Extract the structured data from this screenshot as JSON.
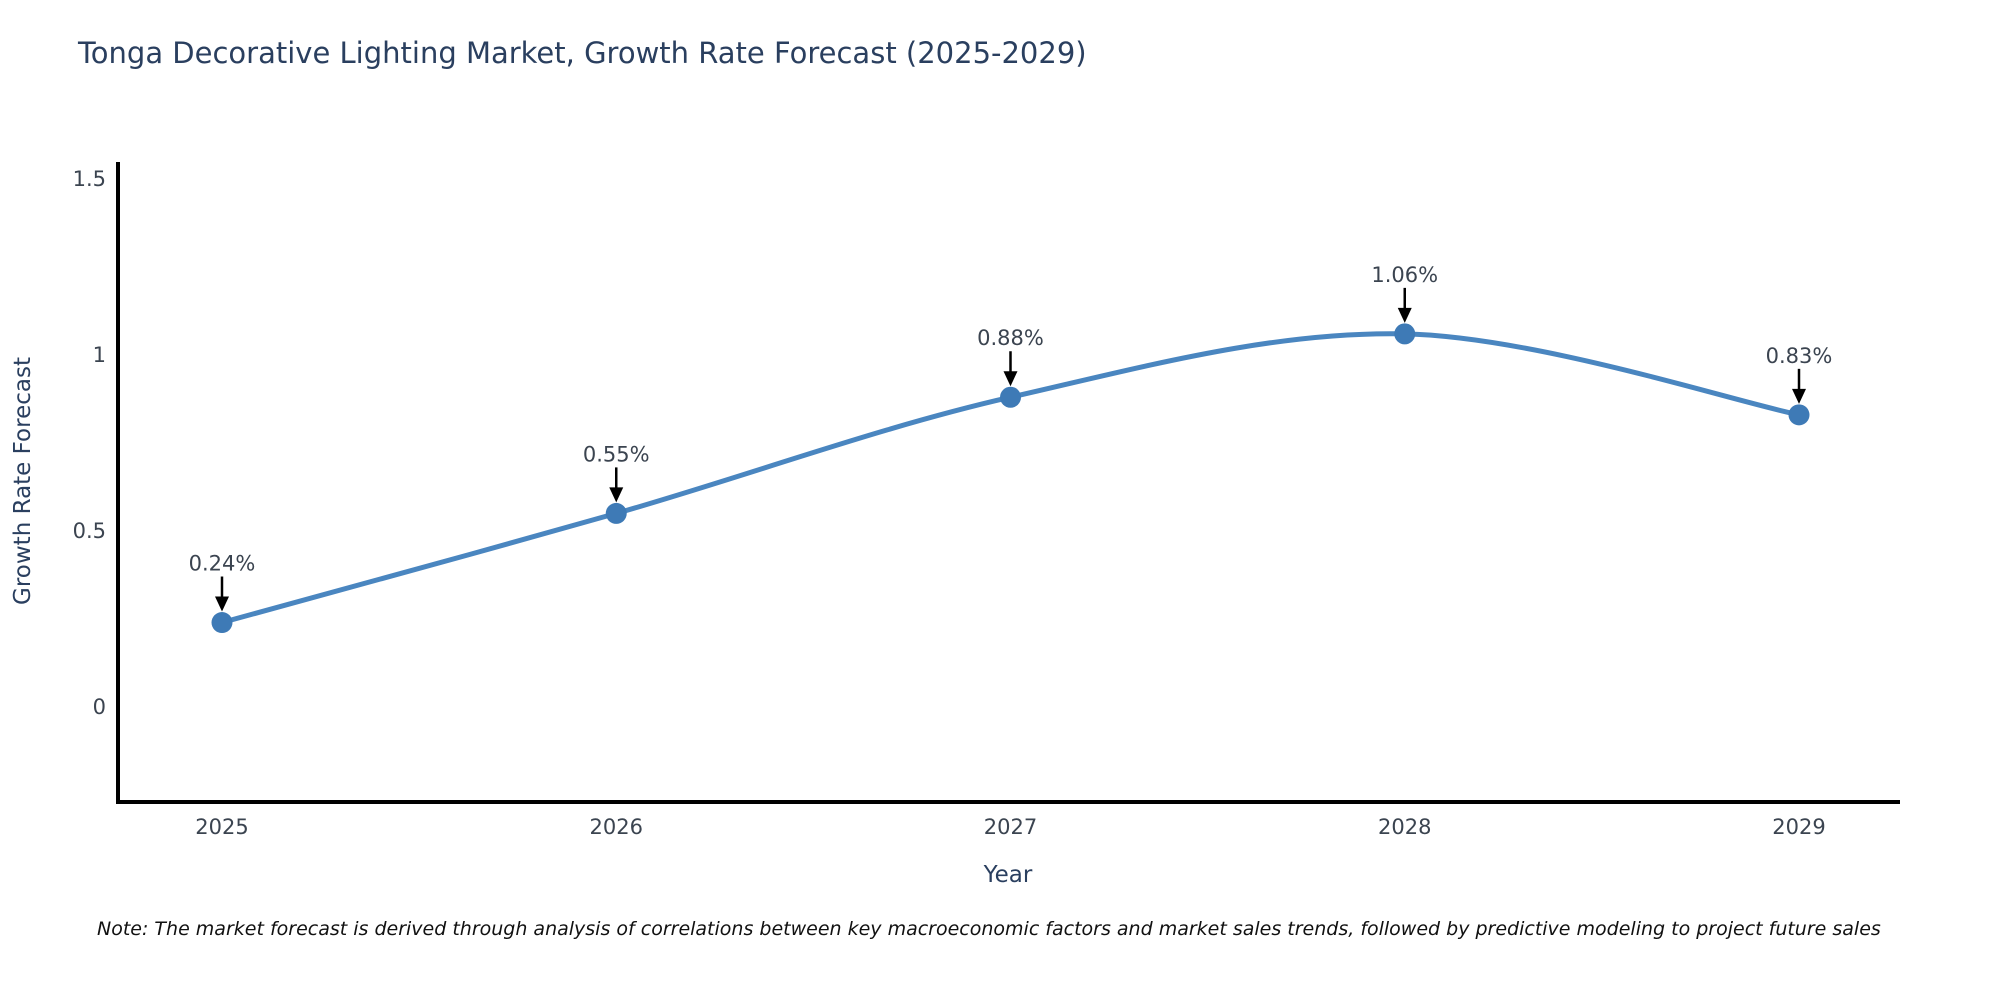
{
  "chart_data": {
    "type": "line",
    "title": "Tonga Decorative Lighting Market, Growth Rate Forecast (2025-2029)",
    "xlabel": "Year",
    "ylabel": "Growth Rate Forecast",
    "categories": [
      "2025",
      "2026",
      "2027",
      "2028",
      "2029"
    ],
    "values": [
      0.24,
      0.55,
      0.88,
      1.06,
      0.83
    ],
    "point_labels": [
      "0.24%",
      "0.55%",
      "0.88%",
      "1.06%",
      "0.83%"
    ],
    "yticks": [
      0,
      0.5,
      1,
      1.5
    ],
    "ytick_labels": [
      "0",
      "0.5",
      "1",
      "1.5"
    ],
    "ylim": [
      -0.27,
      1.55
    ],
    "line_shape": "spline",
    "grid": false,
    "legend_position": "none",
    "line_color": "#4a86c0",
    "marker_color": "#3e7ab6",
    "axis_color": "#000000",
    "annotation_arrow_color": "#000000",
    "tick_text_color": "#3b4450",
    "title_text_color": "#2a3f5f",
    "note": "Note: The market forecast is derived through analysis of correlations between key macroeconomic factors and market sales trends, followed by predictive modeling to project future sales"
  }
}
